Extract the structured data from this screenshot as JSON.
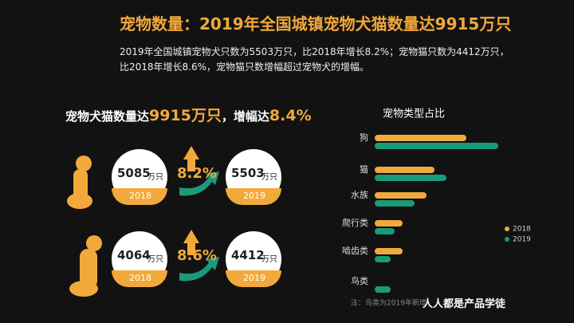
{
  "title": "宠物数量：2019年全国城镇宠物犬猫数量达9915万只",
  "summary": [
    "2019年全国城镇宠物犬只数为5503万只，比2018年增长8.2%；宠物猫只数为4412万只，",
    "比2018年增长8.6%，宠物猫只数增幅超过宠物犬的增幅。"
  ],
  "headline": [
    "宠物犬猫数量达",
    "9915万只",
    "，增幅达",
    "8.4%"
  ],
  "dog": {
    "before": {
      "value": "5085",
      "unit": "万只",
      "year": "2018"
    },
    "growth": "8.2%",
    "after": {
      "value": "5503",
      "unit": "万只",
      "year": "2019"
    }
  },
  "cat": {
    "before": {
      "value": "4064",
      "unit": "万只",
      "year": "2018"
    },
    "growth": "8.6%",
    "after": {
      "value": "4412",
      "unit": "万只",
      "year": "2019"
    }
  },
  "watermark": "人人都是产品学徒",
  "chart_data": {
    "type": "barh",
    "title": "宠物类型占比",
    "categories": [
      "狗",
      "猫",
      "水族",
      "爬行类",
      "啮齿类",
      "鸟类"
    ],
    "series": [
      {
        "name": "2018",
        "color": "#f2a93b",
        "values": [
          115,
          75,
          65,
          35,
          35,
          null
        ]
      },
      {
        "name": "2019",
        "color": "#1a9a7a",
        "values": [
          155,
          90,
          50,
          25,
          20,
          20
        ]
      }
    ],
    "xlim": [
      0,
      160
    ],
    "legend": "right",
    "note": "注：鸟类为2019年新增"
  }
}
